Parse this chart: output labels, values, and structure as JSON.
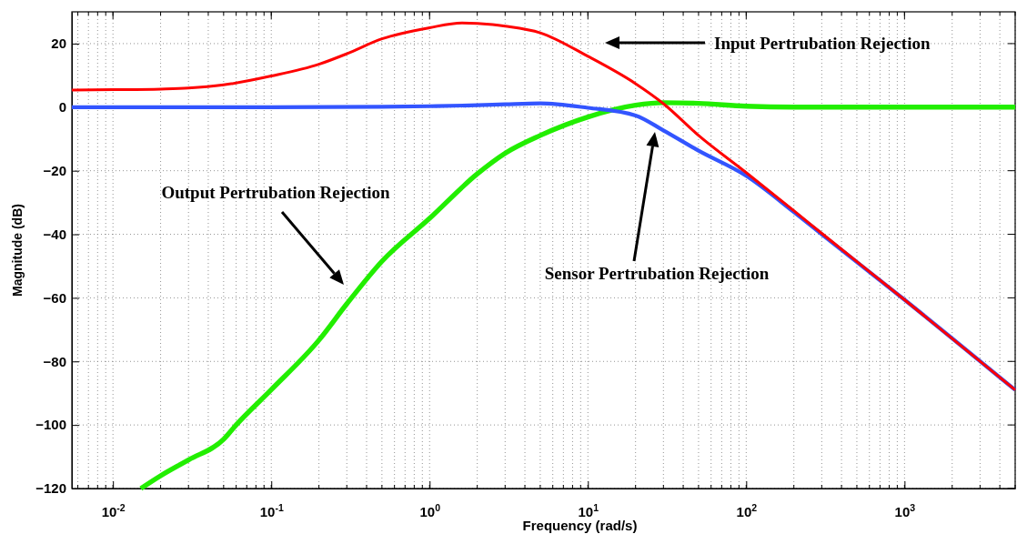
{
  "chart_data": {
    "type": "line",
    "xlabel": "Frequency (rad/s)",
    "ylabel": "Magnitude (dB)",
    "log": "x",
    "grid": true,
    "line_style": "solid",
    "marker": "none",
    "xlim": [
      0.0055,
      5000
    ],
    "ylim": [
      -120,
      30
    ],
    "xticks": [
      {
        "value": 0.01,
        "label": "10$^{-2}$"
      },
      {
        "value": 0.1,
        "label": "10$^{-1}$"
      },
      {
        "value": 1,
        "label": "10$^{0}$"
      },
      {
        "value": 10,
        "label": "10$^{1}$"
      },
      {
        "value": 100,
        "label": "10$^{2}$"
      },
      {
        "value": 1000,
        "label": "10$^{3}$"
      }
    ],
    "yticks": [
      -120,
      -100,
      -80,
      -60,
      -40,
      -20,
      0,
      20
    ],
    "series": [
      {
        "color": "#ff0000",
        "x": [
          0.0055,
          0.01,
          0.02,
          0.03,
          0.05,
          0.1,
          0.2,
          0.3,
          0.5,
          1,
          1.6,
          2.5,
          3,
          5,
          10,
          20,
          30,
          50,
          100,
          200,
          300,
          1000,
          5000
        ],
        "values": [
          5.4,
          5.5,
          5.7,
          6,
          7,
          9.8,
          13.5,
          16.8,
          21.5,
          25,
          26.5,
          26,
          25.5,
          23.4,
          16,
          7.4,
          1.1,
          -8.9,
          -20.6,
          -32.6,
          -39.7,
          -60.6,
          -89
        ]
      },
      {
        "color": "#3355ff",
        "x": [
          0.0055,
          0.1,
          0.5,
          1,
          2,
          3,
          5,
          10,
          20,
          30,
          50,
          100,
          200,
          300,
          1000,
          5000
        ],
        "values": [
          0,
          0,
          0.1,
          0.3,
          0.6,
          0.9,
          1.2,
          -0.2,
          -2.6,
          -7.3,
          -13.7,
          -21.6,
          -33,
          -40,
          -60.6,
          -89
        ]
      },
      {
        "color": "#22ee00",
        "x": [
          0.015,
          0.02,
          0.03,
          0.05,
          0.06,
          0.1,
          0.2,
          0.3,
          0.5,
          1,
          2,
          3,
          5,
          10,
          20,
          30,
          50,
          100,
          200,
          500,
          5000
        ],
        "values": [
          -120,
          -116,
          -111,
          -104.5,
          -100,
          -88.9,
          -73.3,
          -61.9,
          -48.5,
          -35,
          -21,
          -14.5,
          -8.9,
          -3.1,
          0.6,
          1.4,
          1.2,
          0.3,
          0,
          0,
          0
        ]
      }
    ],
    "annotations": [
      "Input Pertrubation Rejection",
      "Sensor Pertrubation Rejection",
      "Output Pertrubation Rejection"
    ]
  }
}
